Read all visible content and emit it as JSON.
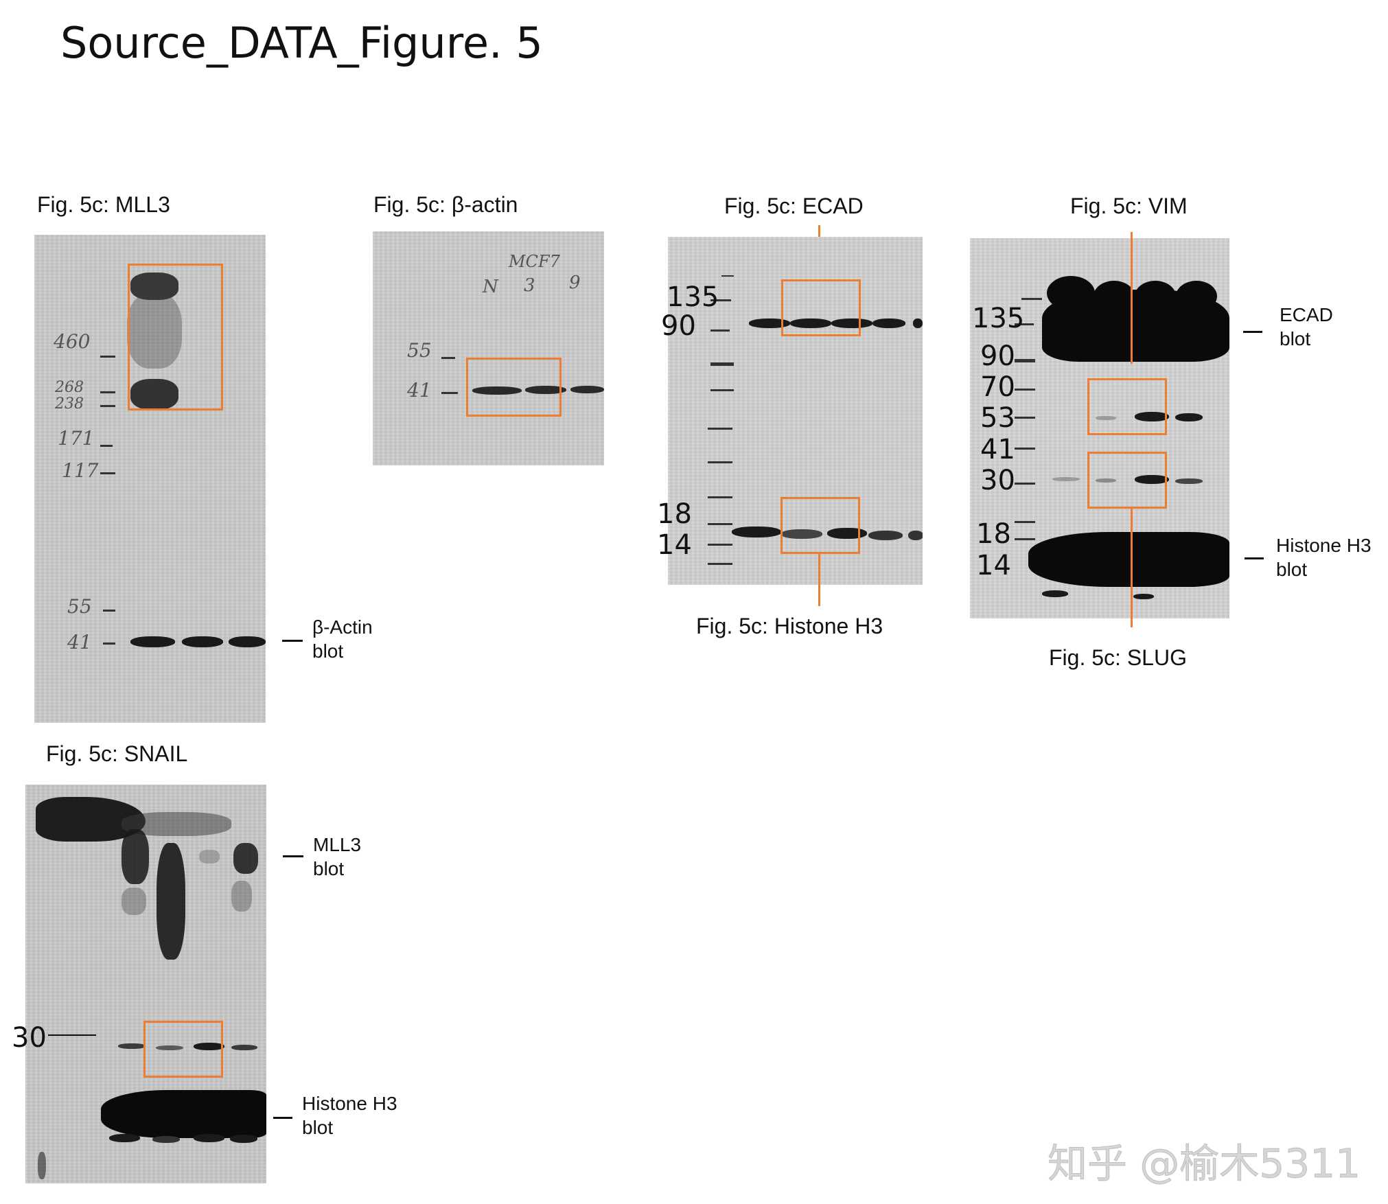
{
  "title": "Source_DATA_Figure. 5",
  "panels": {
    "mll3": {
      "caption": "Fig. 5c: MLL3",
      "markers": [
        "460",
        "268",
        "238",
        "171",
        "117",
        "55",
        "41"
      ],
      "side_label": "β-Actin\nblot"
    },
    "bactin": {
      "caption": "Fig. 5c: β-actin",
      "markers": [
        "55",
        "41"
      ],
      "lane_notes": [
        "MCF7",
        "N",
        "3",
        "9"
      ]
    },
    "ecad": {
      "caption_top": "Fig. 5c: ECAD",
      "caption_bottom": "Fig. 5c: Histone H3",
      "markers": [
        "135",
        "90",
        "18",
        "14"
      ]
    },
    "vim": {
      "caption_top": "Fig. 5c: VIM",
      "caption_bottom": "Fig. 5c: SLUG",
      "markers": [
        "135",
        "90",
        "70",
        "53",
        "41",
        "30",
        "18",
        "14"
      ],
      "side_label_top": "ECAD\nblot",
      "side_label_bottom": "Histone H3\nblot"
    },
    "snail": {
      "caption": "Fig. 5c: SNAIL",
      "marker": "30",
      "side_label_top": "MLL3\nblot",
      "side_label_bottom": "Histone H3\nblot"
    }
  },
  "highlight_color": "#ed7d31",
  "watermark": "知乎 @榆木5311"
}
